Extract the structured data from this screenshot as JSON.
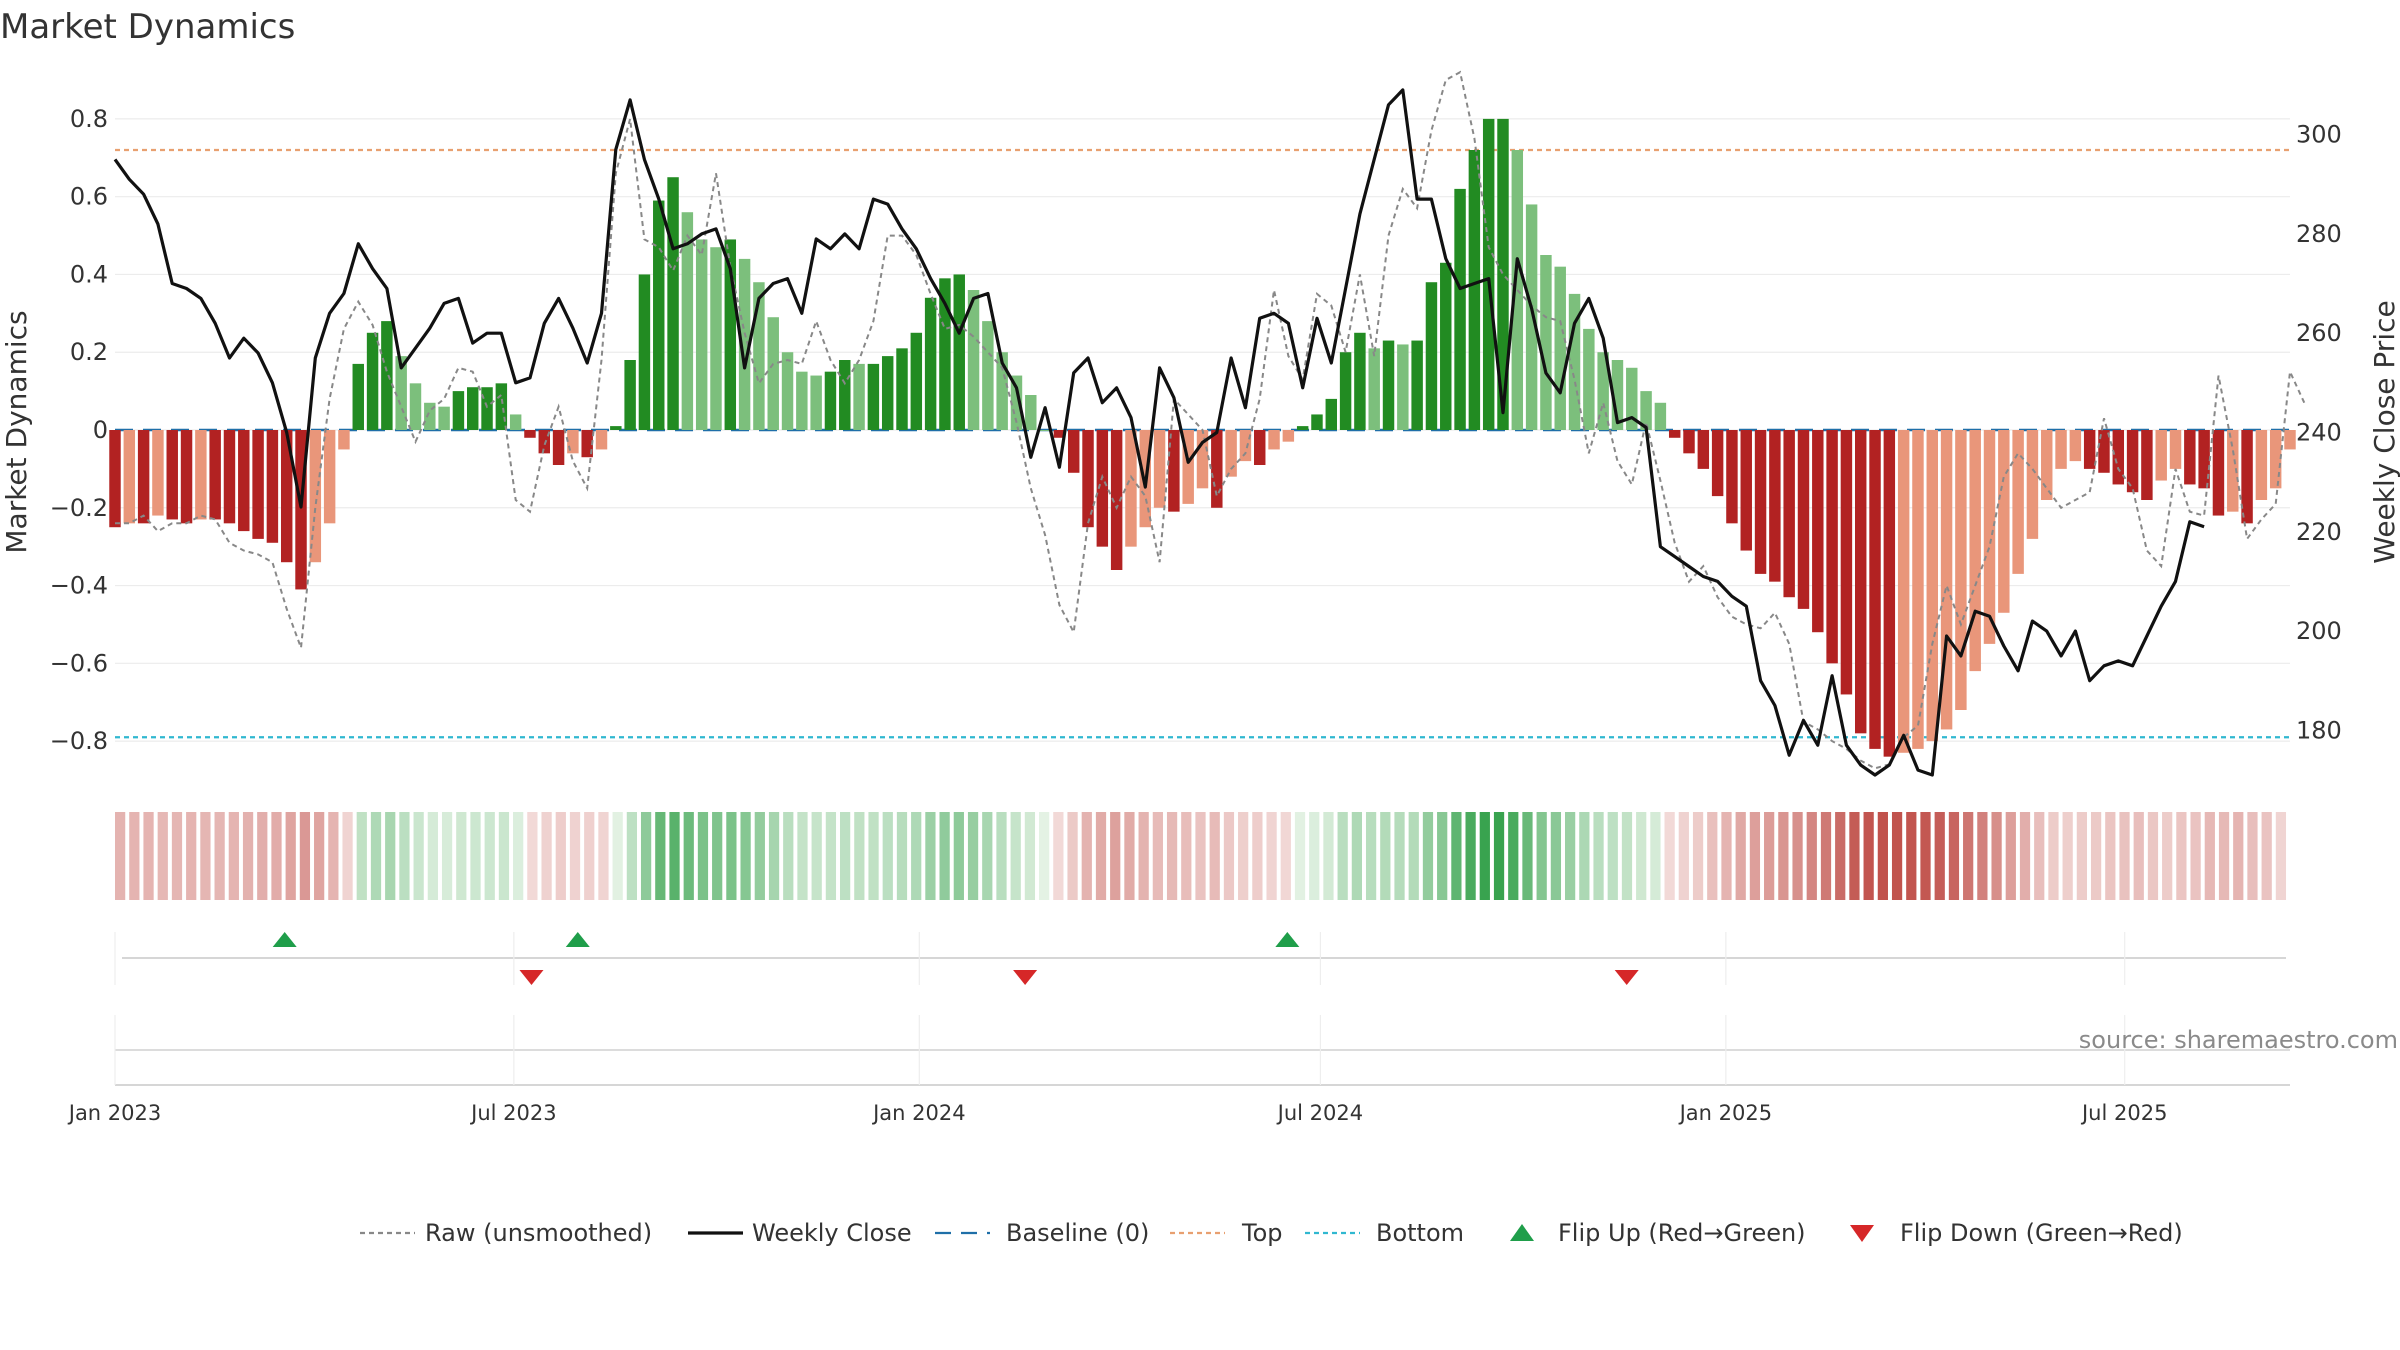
{
  "chart_data": {
    "type": "bar",
    "title": "Market Dynamics",
    "ylabel": "Market Dynamics",
    "y2label": "Weekly Close Price",
    "ylim": [
      -0.9,
      0.9
    ],
    "y2lim": [
      170,
      311
    ],
    "yticks": [
      0.8,
      0.6,
      0.4,
      0.2,
      0,
      -0.2,
      -0.4,
      -0.6,
      -0.8
    ],
    "ytick_labels": [
      "0.8",
      "0.6",
      "0.4",
      "0.2",
      "0",
      "−0.2",
      "−0.4",
      "−0.6",
      "−0.8"
    ],
    "y2ticks": [
      300,
      280,
      260,
      240,
      220,
      200,
      180
    ],
    "x_start": "2023-01-01",
    "x_end": "2025-09-14",
    "x_step_days": 7,
    "xticks": [
      {
        "date": "2023-01-01",
        "label": "Jan 2023"
      },
      {
        "date": "2023-07-01",
        "label": "Jul 2023"
      },
      {
        "date": "2024-01-01",
        "label": "Jan 2024"
      },
      {
        "date": "2024-07-01",
        "label": "Jul 2024"
      },
      {
        "date": "2025-01-01",
        "label": "Jan 2025"
      },
      {
        "date": "2025-07-01",
        "label": "Jul 2025"
      }
    ],
    "top_line": 0.72,
    "bottom_line": -0.79,
    "colors": {
      "strong_green": "#228b22",
      "light_green": "#7cbf7c",
      "strong_red": "#b22222",
      "light_red": "#e9967a",
      "raw": "#888888",
      "close": "#111111",
      "baseline": "#1f6fa8",
      "top": "#e8a070",
      "bottom": "#30b8d0",
      "flip_up": "#1f9e4a",
      "flip_down": "#d62728"
    },
    "momentum": [
      -0.25,
      -0.24,
      -0.24,
      -0.22,
      -0.23,
      -0.24,
      -0.23,
      -0.23,
      -0.24,
      -0.26,
      -0.28,
      -0.29,
      -0.34,
      -0.41,
      -0.34,
      -0.24,
      -0.05,
      0.17,
      0.25,
      0.28,
      0.19,
      0.12,
      0.07,
      0.06,
      0.1,
      0.11,
      0.11,
      0.12,
      0.04,
      -0.02,
      -0.06,
      -0.09,
      -0.06,
      -0.07,
      -0.05,
      0.01,
      0.18,
      0.4,
      0.59,
      0.65,
      0.56,
      0.49,
      0.47,
      0.49,
      0.44,
      0.38,
      0.29,
      0.2,
      0.15,
      0.14,
      0.15,
      0.18,
      0.17,
      0.17,
      0.19,
      0.21,
      0.25,
      0.34,
      0.39,
      0.4,
      0.36,
      0.28,
      0.2,
      0.14,
      0.09,
      0.0,
      -0.02,
      -0.11,
      -0.25,
      -0.3,
      -0.36,
      -0.3,
      -0.25,
      -0.2,
      -0.21,
      -0.19,
      -0.15,
      -0.2,
      -0.12,
      -0.08,
      -0.09,
      -0.05,
      -0.03,
      0.01,
      0.04,
      0.08,
      0.2,
      0.25,
      0.21,
      0.23,
      0.22,
      0.23,
      0.38,
      0.43,
      0.62,
      0.72,
      0.8,
      0.8,
      0.72,
      0.58,
      0.45,
      0.42,
      0.35,
      0.26,
      0.2,
      0.18,
      0.16,
      0.1,
      0.07,
      -0.02,
      -0.06,
      -0.1,
      -0.17,
      -0.24,
      -0.31,
      -0.37,
      -0.39,
      -0.43,
      -0.46,
      -0.52,
      -0.6,
      -0.68,
      -0.78,
      -0.82,
      -0.84,
      -0.83,
      -0.82,
      -0.8,
      -0.77,
      -0.72,
      -0.62,
      -0.55,
      -0.47,
      -0.37,
      -0.28,
      -0.18,
      -0.1,
      -0.08,
      -0.1,
      -0.11,
      -0.14,
      -0.16,
      -0.18,
      -0.13,
      -0.1,
      -0.14,
      -0.15,
      -0.22,
      -0.21,
      -0.24,
      -0.18,
      -0.15,
      -0.05
    ],
    "raw": [
      -0.24,
      -0.24,
      -0.22,
      -0.26,
      -0.24,
      -0.24,
      -0.22,
      -0.23,
      -0.29,
      -0.31,
      -0.32,
      -0.34,
      -0.46,
      -0.56,
      -0.2,
      0.08,
      0.26,
      0.33,
      0.27,
      0.15,
      0.06,
      -0.03,
      0.05,
      0.08,
      0.16,
      0.15,
      0.06,
      0.09,
      -0.18,
      -0.21,
      -0.04,
      0.06,
      -0.08,
      -0.15,
      0.18,
      0.66,
      0.8,
      0.49,
      0.47,
      0.41,
      0.5,
      0.45,
      0.66,
      0.42,
      0.25,
      0.12,
      0.17,
      0.18,
      0.17,
      0.28,
      0.18,
      0.12,
      0.18,
      0.28,
      0.5,
      0.5,
      0.45,
      0.35,
      0.26,
      0.27,
      0.24,
      0.2,
      0.16,
      0.02,
      -0.15,
      -0.27,
      -0.45,
      -0.52,
      -0.24,
      -0.12,
      -0.2,
      -0.12,
      -0.17,
      -0.34,
      0.08,
      0.04,
      0.0,
      -0.17,
      -0.1,
      -0.06,
      0.08,
      0.36,
      0.19,
      0.13,
      0.35,
      0.32,
      0.2,
      0.4,
      0.19,
      0.5,
      0.62,
      0.57,
      0.77,
      0.9,
      0.92,
      0.75,
      0.47,
      0.4,
      0.36,
      0.32,
      0.29,
      0.28,
      0.13,
      -0.06,
      0.07,
      -0.08,
      -0.14,
      0.02,
      -0.13,
      -0.29,
      -0.39,
      -0.35,
      -0.43,
      -0.48,
      -0.5,
      -0.51,
      -0.47,
      -0.55,
      -0.75,
      -0.77,
      -0.8,
      -0.82,
      -0.85,
      -0.87,
      -0.86,
      -0.79,
      -0.76,
      -0.55,
      -0.4,
      -0.5,
      -0.4,
      -0.3,
      -0.12,
      -0.06,
      -0.1,
      -0.15,
      -0.2,
      -0.18,
      -0.16,
      0.03,
      -0.1,
      -0.15,
      -0.31,
      -0.35,
      -0.1,
      -0.21,
      -0.22,
      0.14,
      -0.05,
      -0.28,
      -0.23,
      -0.19,
      0.15,
      0.07
    ],
    "close": [
      295,
      291,
      288,
      282,
      270,
      269,
      267,
      262,
      255,
      259,
      256,
      250,
      240,
      225,
      255,
      264,
      268,
      278,
      273,
      269,
      253,
      257,
      261,
      266,
      267,
      258,
      260,
      260,
      250,
      251,
      262,
      267,
      261,
      254,
      264,
      297,
      307,
      295,
      287,
      277,
      278,
      280,
      281,
      273,
      253,
      267,
      270,
      271,
      264,
      279,
      277,
      280,
      277,
      287,
      286,
      281,
      277,
      271,
      266,
      260,
      267,
      268,
      254,
      249,
      235,
      245,
      233,
      252,
      255,
      246,
      249,
      243,
      229,
      253,
      247,
      234,
      238,
      240,
      255,
      245,
      263,
      264,
      262,
      249,
      263,
      254,
      269,
      284,
      295,
      306,
      309,
      287,
      287,
      275,
      269,
      270,
      271,
      244,
      275,
      265,
      252,
      248,
      262,
      267,
      259,
      242,
      243,
      241,
      217,
      215,
      213,
      211,
      210,
      207,
      205,
      190,
      185,
      175,
      182,
      177,
      191,
      177,
      173,
      171,
      173,
      179,
      172,
      171,
      199,
      195,
      204,
      203,
      197,
      192,
      202,
      200,
      195,
      200,
      190,
      193,
      194,
      193,
      199,
      205,
      210,
      222,
      221
    ],
    "flips_up": [
      "2023-03-19",
      "2023-07-30",
      "2024-06-16"
    ],
    "flips_down": [
      "2023-07-09",
      "2024-02-18",
      "2024-11-17"
    ],
    "legend": [
      {
        "label": "Raw (unsmoothed)",
        "symbol": "dotted-line",
        "color": "#888888"
      },
      {
        "label": "Weekly Close",
        "symbol": "solid-line",
        "color": "#111111"
      },
      {
        "label": "Baseline (0)",
        "symbol": "dashed-line",
        "color": "#1f6fa8"
      },
      {
        "label": "Top",
        "symbol": "dotted-line",
        "color": "#e8a070"
      },
      {
        "label": "Bottom",
        "symbol": "dotted-line",
        "color": "#30b8d0"
      },
      {
        "label": "Flip Up (Red→Green)",
        "symbol": "triangle-up",
        "color": "#1f9e4a"
      },
      {
        "label": "Flip Down (Green→Red)",
        "symbol": "triangle-down",
        "color": "#d62728"
      }
    ],
    "source": "source: sharemaestro.com",
    "grid": true,
    "legend_position": "bottom-center"
  }
}
